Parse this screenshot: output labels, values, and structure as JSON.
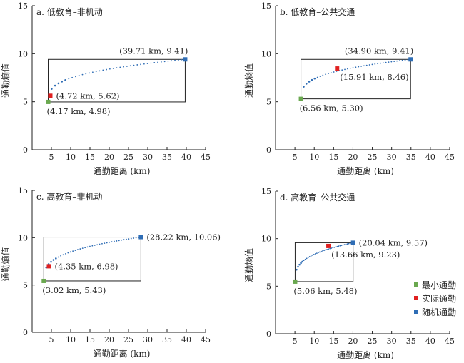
{
  "colors": {
    "min": "#6aa84f",
    "actual": "#e02020",
    "random": "#2f6db5",
    "curve": "#2f6db5",
    "axis": "#222222",
    "box": "#222222"
  },
  "legend": {
    "items": [
      {
        "label": "最小通勤",
        "color": "#6aa84f"
      },
      {
        "label": "实际通勤",
        "color": "#e02020"
      },
      {
        "label": "随机通勤",
        "color": "#2f6db5"
      }
    ]
  },
  "chart_data": [
    {
      "type": "scatter",
      "title": "a. 低教育–非机动",
      "xlabel": "通勤距离 (km)",
      "ylabel": "通勤熵值",
      "xlim": [
        0,
        45
      ],
      "ylim": [
        0,
        15
      ],
      "xticks": [
        "5",
        "10",
        "15",
        "20",
        "25",
        "30",
        "35",
        "40",
        "45"
      ],
      "yticks": [
        "0",
        "5",
        "10",
        "15"
      ],
      "points": {
        "min": {
          "x": 4.17,
          "y": 4.98,
          "label": "(4.17 km, 4.98)"
        },
        "actual": {
          "x": 4.72,
          "y": 5.62,
          "label": "(4.72 km, 5.62)"
        },
        "random": {
          "x": 39.71,
          "y": 9.41,
          "label": "(39.71 km, 9.41)"
        }
      }
    },
    {
      "type": "scatter",
      "title": "b. 低教育–公共交通",
      "xlabel": "通勤距离 (km)",
      "ylabel": "通勤熵值",
      "xlim": [
        0,
        45
      ],
      "ylim": [
        0,
        15
      ],
      "xticks": [
        "5",
        "10",
        "15",
        "20",
        "25",
        "30",
        "35",
        "40",
        "45"
      ],
      "yticks": [
        "0",
        "5",
        "10",
        "15"
      ],
      "points": {
        "min": {
          "x": 6.56,
          "y": 5.3,
          "label": "(6.56 km, 5.30)"
        },
        "actual": {
          "x": 15.91,
          "y": 8.46,
          "label": "(15.91 km, 8.46)"
        },
        "random": {
          "x": 34.9,
          "y": 9.41,
          "label": "(34.90 km, 9.41)"
        }
      }
    },
    {
      "type": "scatter",
      "title": "c. 高教育–非机动",
      "xlabel": "通勤距离 (km)",
      "ylabel": "通勤熵值",
      "xlim": [
        0,
        45
      ],
      "ylim": [
        0,
        15
      ],
      "xticks": [
        "5",
        "10",
        "15",
        "20",
        "25",
        "30",
        "35",
        "40",
        "45"
      ],
      "yticks": [
        "0",
        "5",
        "10",
        "15"
      ],
      "points": {
        "min": {
          "x": 3.02,
          "y": 5.43,
          "label": "(3.02 km, 5.43)"
        },
        "actual": {
          "x": 4.35,
          "y": 6.98,
          "label": "(4.35 km, 6.98)"
        },
        "random": {
          "x": 28.22,
          "y": 10.06,
          "label": "(28.22 km, 10.06)"
        }
      }
    },
    {
      "type": "scatter",
      "title": "d. 高教育–公共交通",
      "xlabel": "通勤距离 (km)",
      "ylabel": "通勤熵值",
      "xlim": [
        0,
        45
      ],
      "ylim": [
        0,
        15
      ],
      "xticks": [
        "5",
        "10",
        "15",
        "20",
        "25",
        "30",
        "35",
        "40",
        "45"
      ],
      "yticks": [
        "0",
        "5",
        "10",
        "15"
      ],
      "points": {
        "min": {
          "x": 5.06,
          "y": 5.48,
          "label": "(5.06 km, 5.48)"
        },
        "actual": {
          "x": 13.66,
          "y": 9.23,
          "label": "(13.66 km, 9.23)"
        },
        "random": {
          "x": 20.04,
          "y": 9.57,
          "label": "(20.04 km, 9.57)"
        }
      }
    }
  ]
}
